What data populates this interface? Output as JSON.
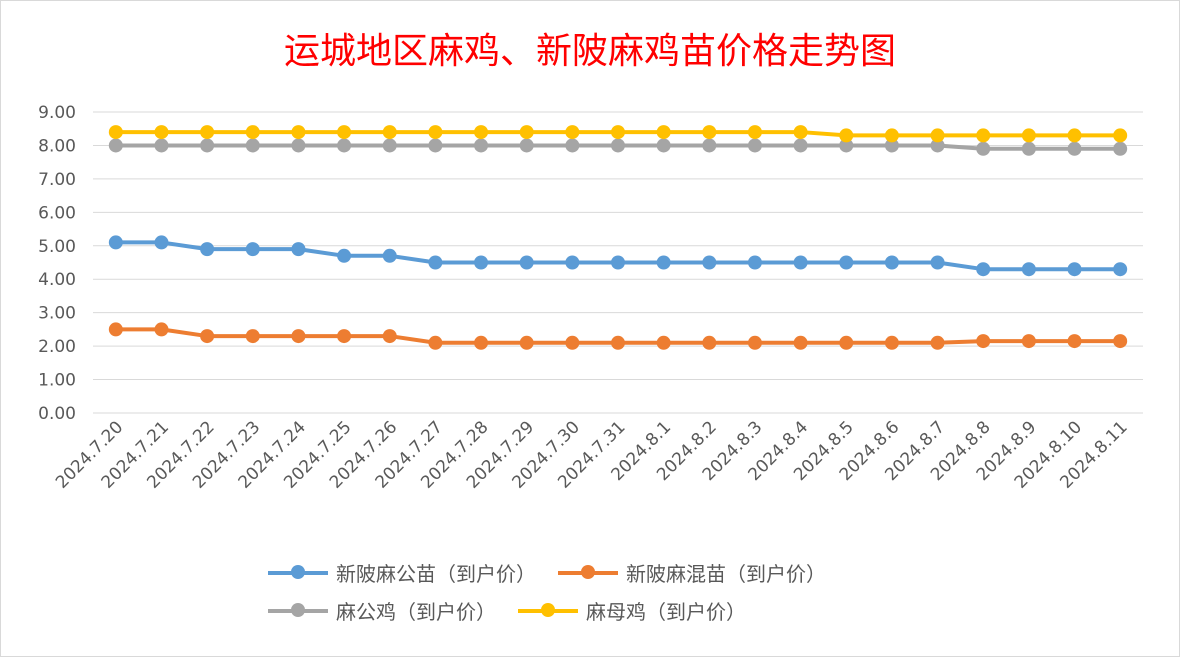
{
  "chart_data": {
    "type": "line",
    "title": "运城地区麻鸡、新陂麻鸡苗价格走势图",
    "xlabel": "",
    "ylabel": "",
    "ylim": [
      0,
      9
    ],
    "yticks": [
      "0.00",
      "1.00",
      "2.00",
      "3.00",
      "4.00",
      "5.00",
      "6.00",
      "7.00",
      "8.00",
      "9.00"
    ],
    "grid": true,
    "legend": "bottom",
    "categories": [
      "2024.7.20",
      "2024.7.21",
      "2024.7.22",
      "2024.7.23",
      "2024.7.24",
      "2024.7.25",
      "2024.7.26",
      "2024.7.27",
      "2024.7.28",
      "2024.7.29",
      "2024.7.30",
      "2024.7.31",
      "2024.8.1",
      "2024.8.2",
      "2024.8.3",
      "2024.8.4",
      "2024.8.5",
      "2024.8.6",
      "2024.8.7",
      "2024.8.8",
      "2024.8.9",
      "2024.8.10",
      "2024.8.11"
    ],
    "series": [
      {
        "name": "新陂麻公苗（到户价）",
        "color": "#5b9bd5",
        "values": [
          5.1,
          5.1,
          4.9,
          4.9,
          4.9,
          4.7,
          4.7,
          4.5,
          4.5,
          4.5,
          4.5,
          4.5,
          4.5,
          4.5,
          4.5,
          4.5,
          4.5,
          4.5,
          4.5,
          4.3,
          4.3,
          4.3,
          4.3
        ]
      },
      {
        "name": "新陂麻混苗（到户价）",
        "color": "#ed7d31",
        "values": [
          2.5,
          2.5,
          2.3,
          2.3,
          2.3,
          2.3,
          2.3,
          2.1,
          2.1,
          2.1,
          2.1,
          2.1,
          2.1,
          2.1,
          2.1,
          2.1,
          2.1,
          2.1,
          2.1,
          2.15,
          2.15,
          2.15,
          2.15
        ]
      },
      {
        "name": "麻公鸡（到户价）",
        "color": "#a5a5a5",
        "values": [
          8.0,
          8.0,
          8.0,
          8.0,
          8.0,
          8.0,
          8.0,
          8.0,
          8.0,
          8.0,
          8.0,
          8.0,
          8.0,
          8.0,
          8.0,
          8.0,
          8.0,
          8.0,
          8.0,
          7.9,
          7.9,
          7.9,
          7.9
        ]
      },
      {
        "name": "麻母鸡（到户价）",
        "color": "#ffc000",
        "values": [
          8.4,
          8.4,
          8.4,
          8.4,
          8.4,
          8.4,
          8.4,
          8.4,
          8.4,
          8.4,
          8.4,
          8.4,
          8.4,
          8.4,
          8.4,
          8.4,
          8.3,
          8.3,
          8.3,
          8.3,
          8.3,
          8.3,
          8.3
        ]
      }
    ]
  }
}
